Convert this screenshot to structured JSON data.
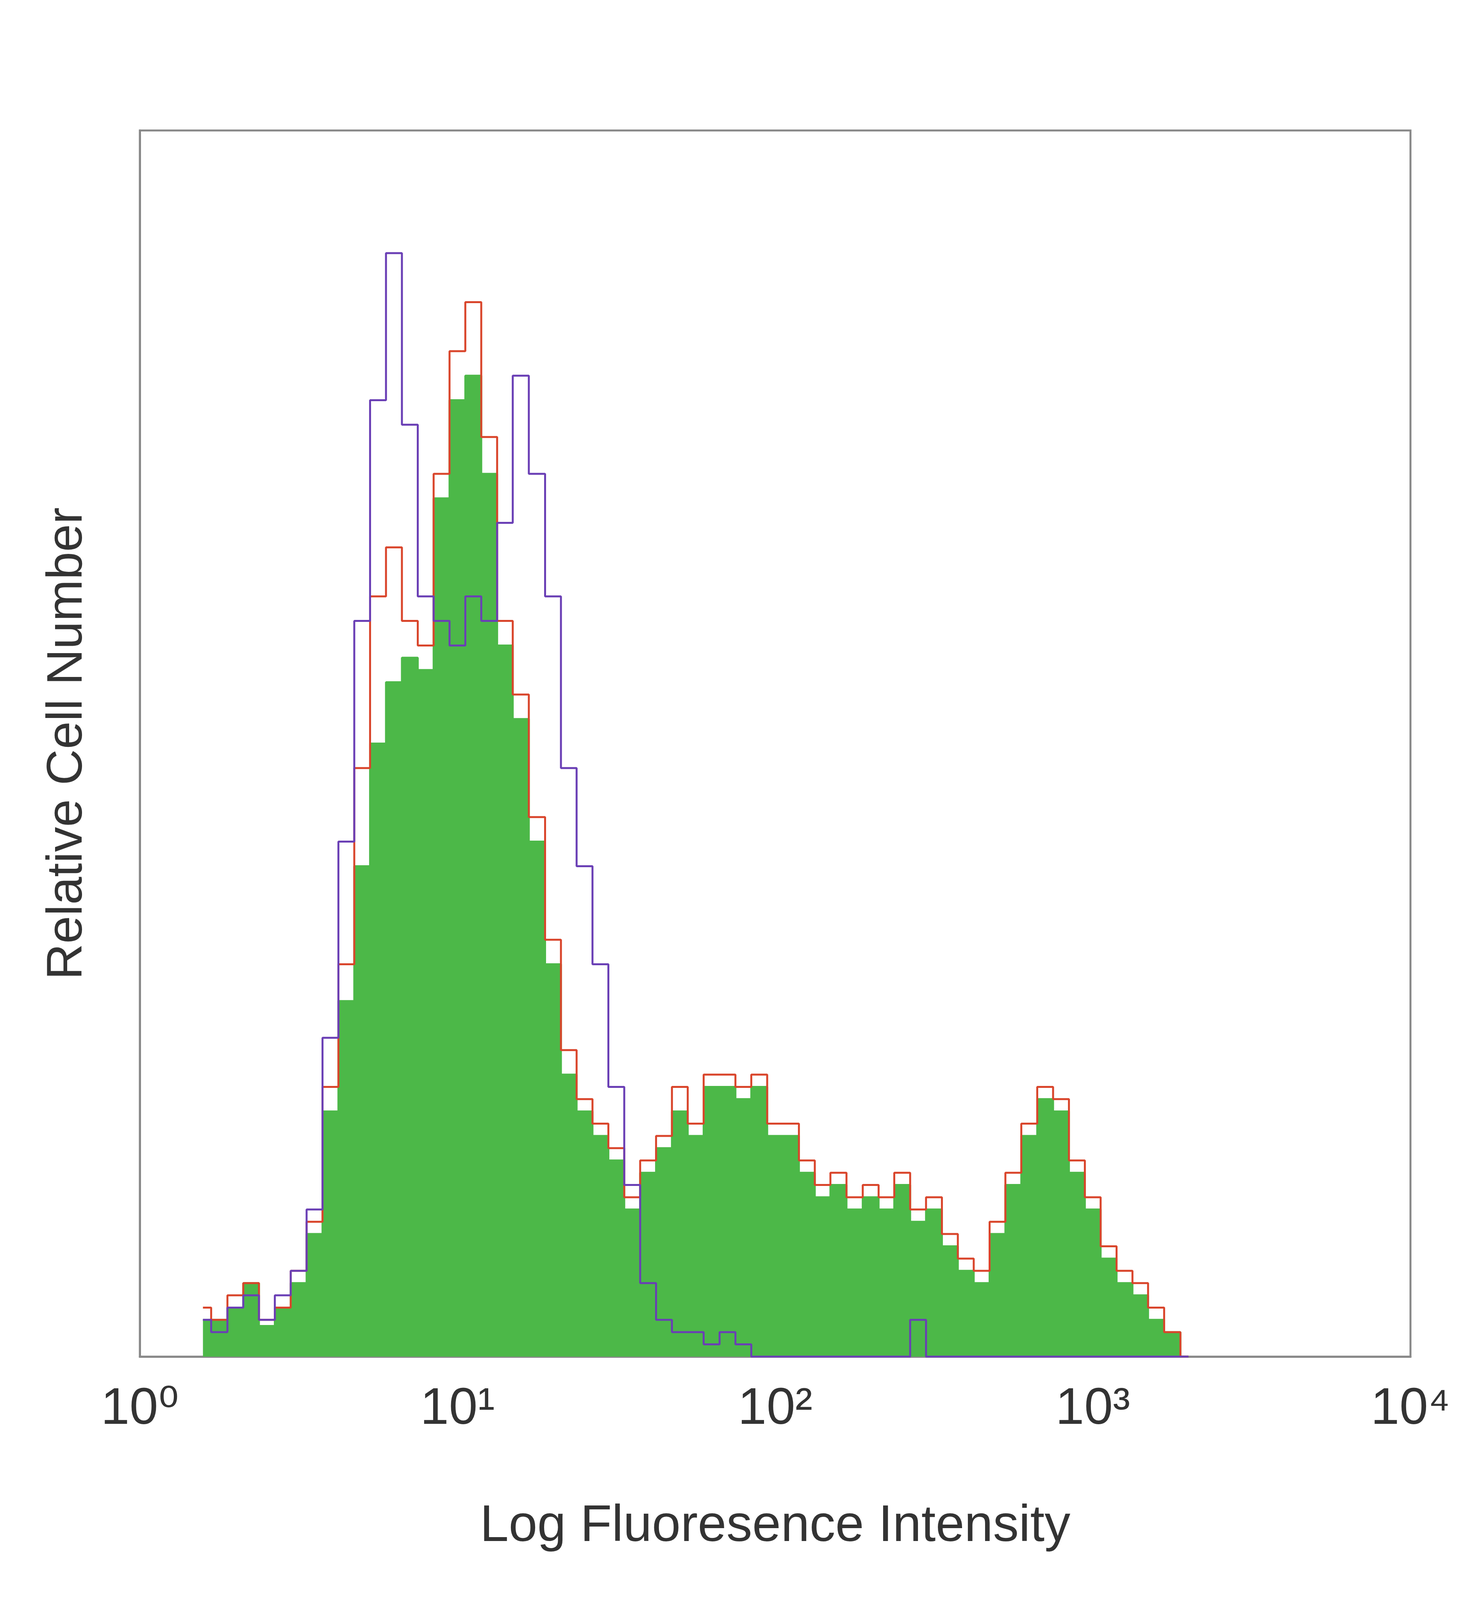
{
  "chart_data": {
    "type": "line",
    "x_label": "Log Fluoresence Intensity",
    "y_label": "Relative Cell Number",
    "log": "x",
    "grid": false,
    "tick_labels": "x",
    "xlim": [
      1,
      10000
    ],
    "xticks": [
      {
        "value": 1,
        "label": "10⁰"
      },
      {
        "value": 10,
        "label": "10¹"
      },
      {
        "value": 100,
        "label": "10²"
      },
      {
        "value": 1000,
        "label": "10³"
      },
      {
        "value": 10000,
        "label": "10⁴"
      }
    ],
    "ylim": [
      0,
      100
    ],
    "x": [
      1.58,
      1.78,
      2.0,
      2.24,
      2.51,
      2.82,
      3.16,
      3.55,
      3.98,
      4.47,
      5.01,
      5.62,
      6.31,
      7.08,
      7.94,
      8.91,
      10,
      11.2,
      12.6,
      14.1,
      15.8,
      17.8,
      20.0,
      22.4,
      25.1,
      28.2,
      31.6,
      35.5,
      39.8,
      44.7,
      50.1,
      56.2,
      63.1,
      70.8,
      79.4,
      89.1,
      100,
      112,
      126,
      141,
      158,
      178,
      200,
      224,
      251,
      282,
      316,
      355,
      398,
      447,
      501,
      562,
      631,
      708,
      794,
      891,
      1000,
      1120,
      1260,
      1410,
      1580,
      1780,
      2000
    ],
    "series": [
      {
        "type": "area",
        "color": "#4cb848",
        "values": [
          3,
          3,
          4,
          6,
          2.5,
          4,
          6,
          10,
          20,
          29,
          40,
          50,
          55,
          57,
          56,
          70,
          78,
          80,
          72,
          58,
          52,
          42,
          32,
          23,
          20,
          18,
          16,
          12,
          15,
          17,
          20,
          18,
          22,
          22,
          21,
          22,
          18,
          18,
          15,
          13,
          14,
          12,
          13,
          12,
          14,
          11,
          12,
          9,
          7,
          6,
          10,
          14,
          18,
          21,
          20,
          15,
          12,
          8,
          6,
          5,
          3,
          2,
          0
        ]
      },
      {
        "type": "line",
        "color": "#d9452b",
        "values": [
          4,
          3,
          5,
          6,
          3,
          4,
          7,
          11,
          22,
          32,
          48,
          62,
          66,
          60,
          58,
          72,
          82,
          86,
          75,
          60,
          54,
          44,
          34,
          25,
          21,
          19,
          17,
          13,
          16,
          18,
          22,
          19,
          23,
          23,
          22,
          23,
          19,
          19,
          16,
          14,
          15,
          13,
          14,
          13,
          15,
          12,
          13,
          10,
          8,
          7,
          11,
          15,
          19,
          22,
          21,
          16,
          13,
          9,
          7,
          6,
          4,
          2,
          0
        ]
      },
      {
        "type": "line",
        "color": "#6a3fb5",
        "values": [
          3,
          2,
          4,
          5,
          3,
          5,
          7,
          12,
          26,
          42,
          60,
          78,
          90,
          76,
          62,
          60,
          58,
          62,
          60,
          68,
          80,
          72,
          62,
          48,
          40,
          32,
          22,
          14,
          6,
          3,
          2,
          2,
          1,
          2,
          1,
          0,
          0,
          0,
          0,
          0,
          0,
          0,
          0,
          0,
          0,
          3,
          0,
          0,
          0,
          0,
          0,
          0,
          0,
          0,
          0,
          0,
          0,
          0,
          0,
          0,
          0,
          0,
          0
        ]
      }
    ]
  }
}
